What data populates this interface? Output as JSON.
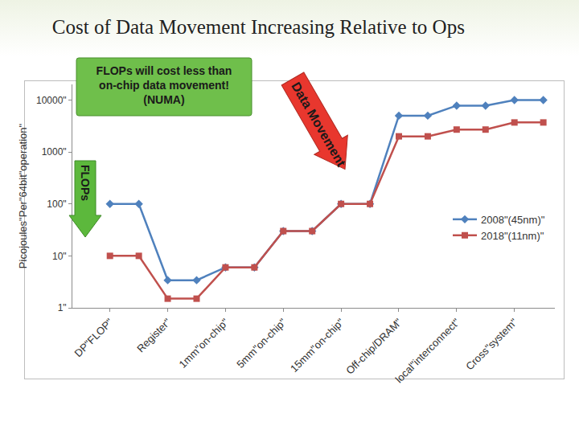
{
  "chart_data": {
    "type": "line",
    "title": "Cost of Data Movement Increasing Relative to Ops",
    "y_label": "Picojoules\"Per\"64bit\"operation\"",
    "categories": [
      "DP\"FLOP\"",
      null,
      "Register\"",
      null,
      "1mm\"on‐chip\"",
      null,
      "5mm\"on‐chip\"",
      null,
      "15mm\"on‐chip\"",
      null,
      "Off‐chip/DRAM\"",
      null,
      "local\"interconnect\"",
      null,
      "Cross\"system\"",
      null
    ],
    "series": [
      {
        "name": "2008\"(45nm)\"",
        "color": "#4f81bd",
        "marker": "diamond",
        "line_style": "solid",
        "values": [
          100,
          100,
          3.4,
          3.4,
          6,
          6,
          30,
          30,
          100,
          100,
          5000,
          5000,
          7800,
          7800,
          10000,
          10000
        ]
      },
      {
        "name": "2018\"(11nm)\"",
        "color": "#c0504d",
        "marker": "square",
        "line_style": "solid",
        "values": [
          10,
          10,
          1.5,
          1.5,
          6,
          6,
          30,
          30,
          100,
          100,
          2000,
          2000,
          2700,
          2700,
          3700,
          3700
        ]
      }
    ],
    "log": "y",
    "ylim": [
      1,
      20000
    ],
    "yticks": [
      {
        "value": 1,
        "label": "1\""
      },
      {
        "value": 10,
        "label": "10\""
      },
      {
        "value": 100,
        "label": "100\""
      },
      {
        "value": 1000,
        "label": "1000\""
      },
      {
        "value": 10000,
        "label": "10000\""
      }
    ],
    "grid": false,
    "legend": "right",
    "annotations": [
      {
        "text": "FLOPs will cost less than\non-chip data movement!\n(NUMA)",
        "color": "#6fbf4b"
      },
      {
        "text": "Data Movement",
        "color": "#e8372e"
      },
      {
        "text": "FLOPs",
        "color": "#5cb83c"
      }
    ]
  }
}
